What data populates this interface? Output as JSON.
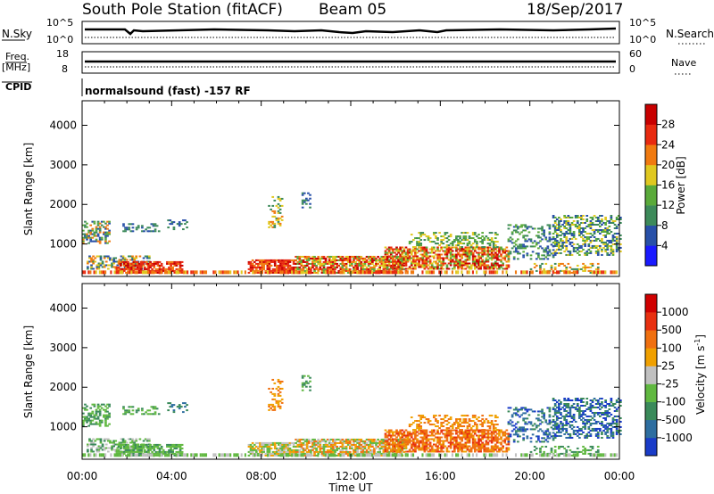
{
  "header": {
    "station": "South Pole Station (fitACF)",
    "beam": "Beam 05",
    "date": "18/Sep/2017"
  },
  "panels": {
    "nsky": {
      "label": "N.Sky",
      "tick_hi": "10^5",
      "tick_lo": "10^0",
      "right_label": "N.Search",
      "right_tick_hi": "10^5",
      "right_tick_lo": "10^0"
    },
    "freq": {
      "label_1": "Freq.",
      "label_2": "[MHz]",
      "tick_hi": "18",
      "tick_lo": "8",
      "right_label": "Nave",
      "right_tick_hi": "60",
      "right_tick_lo": "0"
    },
    "cpid": {
      "label": "CPID",
      "text": "normalsound (fast) -157 RF"
    }
  },
  "chart_data": [
    {
      "type": "heatmap",
      "name": "power",
      "ylabel": "Slant Range [km]",
      "xlabel": "",
      "yticks": [
        "1000",
        "2000",
        "3000",
        "4000"
      ],
      "ylim": [
        180,
        4620
      ],
      "colorbar": {
        "label": "Power [dB]",
        "ticks": [
          "4",
          "8",
          "12",
          "16",
          "20",
          "24",
          "28"
        ],
        "colors": [
          "#1a1aff",
          "#2850a8",
          "#3d8a5a",
          "#5aaa3a",
          "#e0c820",
          "#f07a10",
          "#e82a10",
          "#c80000"
        ]
      }
    },
    {
      "type": "heatmap",
      "name": "velocity",
      "ylabel": "Slant Range [km]",
      "xlabel": "Time UT",
      "xticks": [
        "00:00",
        "04:00",
        "08:00",
        "12:00",
        "16:00",
        "20:00",
        "00:00"
      ],
      "yticks": [
        "1000",
        "2000",
        "3000",
        "4000"
      ],
      "ylim": [
        180,
        4620
      ],
      "colorbar": {
        "label": "Velocity [m s^-1]",
        "ticks": [
          "1000",
          "500",
          "100",
          "25",
          "-25",
          "-100",
          "-500",
          "-1000"
        ],
        "colors": [
          "#1a3cc8",
          "#2e6ea0",
          "#3a8a5a",
          "#60b840",
          "#c0c0c0",
          "#f0a000",
          "#f07010",
          "#e83010",
          "#d00000"
        ]
      }
    }
  ]
}
